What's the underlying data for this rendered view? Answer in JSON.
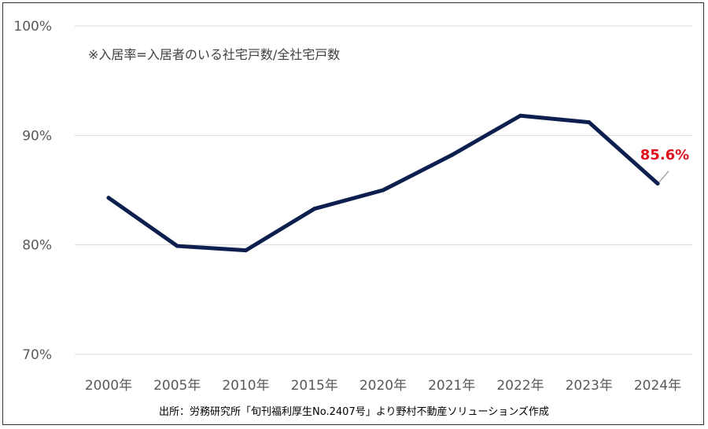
{
  "chart_data": {
    "type": "line",
    "title": "",
    "xlabel": "",
    "ylabel": "",
    "categories": [
      "2000年",
      "2005年",
      "2010年",
      "2015年",
      "2020年",
      "2021年",
      "2022年",
      "2023年",
      "2024年"
    ],
    "series": [
      {
        "values": [
          84.3,
          79.9,
          79.5,
          83.3,
          85.0,
          88.2,
          91.8,
          91.2,
          85.6
        ]
      }
    ],
    "ylim": [
      70,
      100
    ],
    "yticks": [
      70,
      80,
      90,
      100
    ],
    "ytick_labels": [
      "70%",
      "80%",
      "90%",
      "100%"
    ],
    "grid": true,
    "legend": "none",
    "line_color": "#0d1f4f",
    "grid_color": "#d9d9d9",
    "annotation": {
      "label": "85.6%",
      "category_index": 8,
      "color": "#e0101d"
    },
    "note": "※入居率=入居者のいる社宅戸数/全社宅戸数",
    "source": "出所：労務研究所「旬刊福利厚生No.2407号」より野村不動産ソリューションズ作成"
  }
}
